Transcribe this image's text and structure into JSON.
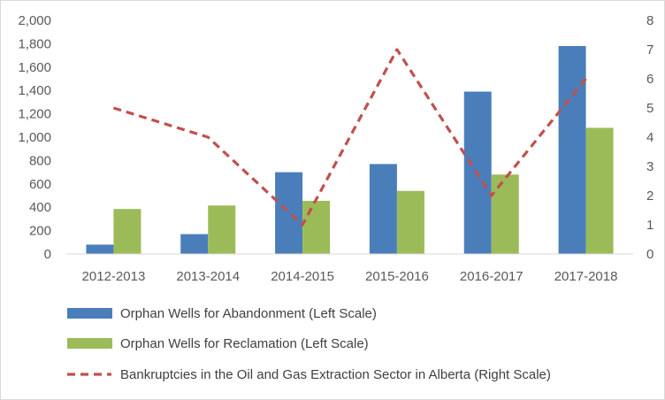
{
  "chart_data": {
    "type": "bar",
    "categories": [
      "2012-2013",
      "2013-2014",
      "2014-2015",
      "2015-2016",
      "2016-2017",
      "2017-2018"
    ],
    "series": [
      {
        "name": "Orphan Wells for Abandonment (Left Scale)",
        "type": "bar",
        "axis": "left",
        "color": "#4a7ebb",
        "values": [
          80,
          170,
          700,
          770,
          1390,
          1780
        ]
      },
      {
        "name": "Orphan Wells for Reclamation (Left Scale)",
        "type": "bar",
        "axis": "left",
        "color": "#9bbb59",
        "values": [
          385,
          415,
          455,
          540,
          680,
          1080
        ]
      },
      {
        "name": "Bankruptcies in the Oil and Gas Extraction Sector in Alberta (Right Scale)",
        "type": "line",
        "style": "dashed",
        "axis": "right",
        "color": "#c0504d",
        "values": [
          5,
          4,
          1,
          7,
          2,
          6
        ]
      }
    ],
    "y_left": {
      "range": [
        0,
        2000
      ],
      "ticks": [
        0,
        200,
        400,
        600,
        800,
        1000,
        1200,
        1400,
        1600,
        1800,
        2000
      ],
      "tick_labels": [
        "0",
        "200",
        "400",
        "600",
        "800",
        "1,000",
        "1,200",
        "1,400",
        "1,600",
        "1,800",
        "2,000"
      ]
    },
    "y_right": {
      "range": [
        0,
        8
      ],
      "ticks": [
        0,
        1,
        2,
        3,
        4,
        5,
        6,
        7,
        8
      ],
      "tick_labels": [
        "0",
        "1",
        "2",
        "3",
        "4",
        "5",
        "6",
        "7",
        "8"
      ]
    },
    "title": "",
    "grid": false,
    "legend_placement": "bottom"
  }
}
